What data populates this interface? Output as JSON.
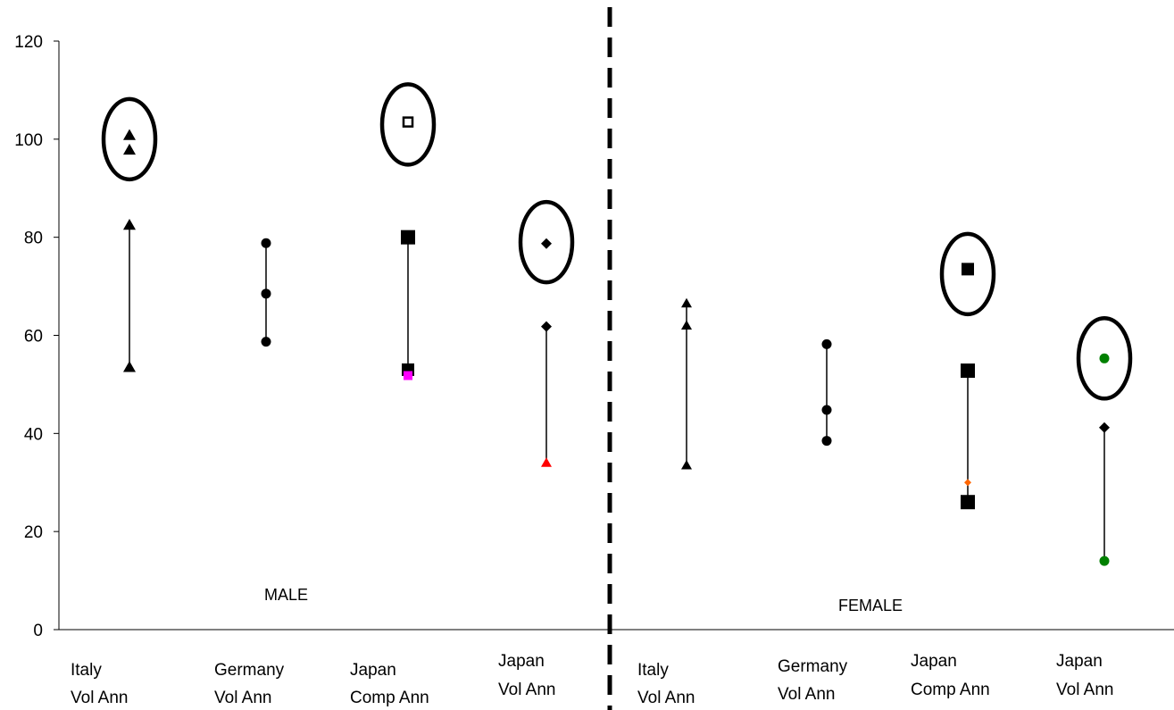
{
  "chart_data": {
    "type": "scatter",
    "title": "",
    "xlabel": "",
    "ylabel": "",
    "ylim": [
      0,
      120
    ],
    "yticks": [
      0,
      20,
      40,
      60,
      80,
      100,
      120
    ],
    "grid": false,
    "divider": "dashed-vertical-between-male-and-female",
    "groups": [
      {
        "label": "MALE",
        "categories": [
          0,
          1,
          2,
          3
        ]
      },
      {
        "label": "FEMALE",
        "categories": [
          4,
          5,
          6,
          7
        ]
      }
    ],
    "categories": [
      {
        "line1": "Italy",
        "line2": "Vol Ann"
      },
      {
        "line1": "Germany",
        "line2": "Vol Ann"
      },
      {
        "line1": "Japan",
        "line2": "Comp Ann"
      },
      {
        "line1": "Japan",
        "line2": "Vol Ann"
      },
      {
        "line1": "Italy",
        "line2": "Vol Ann"
      },
      {
        "line1": "Germany",
        "line2": "Vol Ann"
      },
      {
        "line1": "Japan",
        "line2": "Comp Ann"
      },
      {
        "line1": "Japan",
        "line2": "Vol Ann"
      }
    ],
    "ranges": [
      {
        "category": 0,
        "low": 53.5,
        "high": 82.5
      },
      {
        "category": 1,
        "low": 58.7,
        "high": 78.8
      },
      {
        "category": 2,
        "low": 53.0,
        "high": 80.0
      },
      {
        "category": 3,
        "low": 34.0,
        "high": 61.8
      },
      {
        "category": 4,
        "low": 33.5,
        "high": 66.5
      },
      {
        "category": 5,
        "low": 38.5,
        "high": 58.2
      },
      {
        "category": 6,
        "low": 26.0,
        "high": 52.8
      },
      {
        "category": 7,
        "low": 14.0,
        "high": 41.2
      }
    ],
    "points": [
      {
        "category": 0,
        "value": 82.5,
        "marker": "triangle",
        "color": "#000000",
        "size": 7
      },
      {
        "category": 0,
        "value": 53.5,
        "marker": "triangle",
        "color": "#000000",
        "size": 7
      },
      {
        "category": 0,
        "value": 100.8,
        "marker": "triangle",
        "color": "#000000",
        "size": 7
      },
      {
        "category": 0,
        "value": 97.8,
        "marker": "triangle",
        "color": "#000000",
        "size": 7
      },
      {
        "category": 1,
        "value": 78.8,
        "marker": "circle",
        "color": "#000000",
        "size": 6
      },
      {
        "category": 1,
        "value": 68.5,
        "marker": "circle",
        "color": "#000000",
        "size": 6
      },
      {
        "category": 1,
        "value": 58.7,
        "marker": "circle",
        "color": "#000000",
        "size": 6
      },
      {
        "category": 2,
        "value": 80.0,
        "marker": "square",
        "color": "#000000",
        "size": 8
      },
      {
        "category": 2,
        "value": 53.0,
        "marker": "square",
        "color": "#000000",
        "size": 7
      },
      {
        "category": 2,
        "value": 51.8,
        "marker": "square",
        "color": "#ff00ff",
        "size": 5
      },
      {
        "category": 2,
        "value": 103.5,
        "marker": "square-hollow",
        "color": "#000000",
        "size": 5
      },
      {
        "category": 3,
        "value": 78.7,
        "marker": "diamond",
        "color": "#000000",
        "size": 6
      },
      {
        "category": 3,
        "value": 61.8,
        "marker": "diamond",
        "color": "#000000",
        "size": 6
      },
      {
        "category": 3,
        "value": 34.0,
        "marker": "triangle",
        "color": "#ff0000",
        "size": 6
      },
      {
        "category": 4,
        "value": 66.5,
        "marker": "triangle",
        "color": "#000000",
        "size": 6
      },
      {
        "category": 4,
        "value": 62.0,
        "marker": "triangle",
        "color": "#000000",
        "size": 6
      },
      {
        "category": 4,
        "value": 33.5,
        "marker": "triangle",
        "color": "#000000",
        "size": 6
      },
      {
        "category": 5,
        "value": 58.2,
        "marker": "circle",
        "color": "#000000",
        "size": 6
      },
      {
        "category": 5,
        "value": 44.8,
        "marker": "circle",
        "color": "#000000",
        "size": 6
      },
      {
        "category": 5,
        "value": 38.5,
        "marker": "circle",
        "color": "#000000",
        "size": 6
      },
      {
        "category": 6,
        "value": 73.5,
        "marker": "square",
        "color": "#000000",
        "size": 7
      },
      {
        "category": 6,
        "value": 52.8,
        "marker": "square",
        "color": "#000000",
        "size": 8
      },
      {
        "category": 6,
        "value": 30.0,
        "marker": "diamond",
        "color": "#ff6600",
        "size": 4
      },
      {
        "category": 6,
        "value": 26.0,
        "marker": "square",
        "color": "#000000",
        "size": 8
      },
      {
        "category": 7,
        "value": 55.3,
        "marker": "circle",
        "color": "#008000",
        "size": 6
      },
      {
        "category": 7,
        "value": 41.2,
        "marker": "diamond",
        "color": "#000000",
        "size": 6
      },
      {
        "category": 7,
        "value": 14.0,
        "marker": "circle",
        "color": "#008000",
        "size": 6
      }
    ],
    "highlights": [
      {
        "category": 0,
        "center": 100.0
      },
      {
        "category": 2,
        "center": 103.0
      },
      {
        "category": 3,
        "center": 79.0
      },
      {
        "category": 6,
        "center": 72.5
      },
      {
        "category": 7,
        "center": 55.3
      }
    ]
  }
}
